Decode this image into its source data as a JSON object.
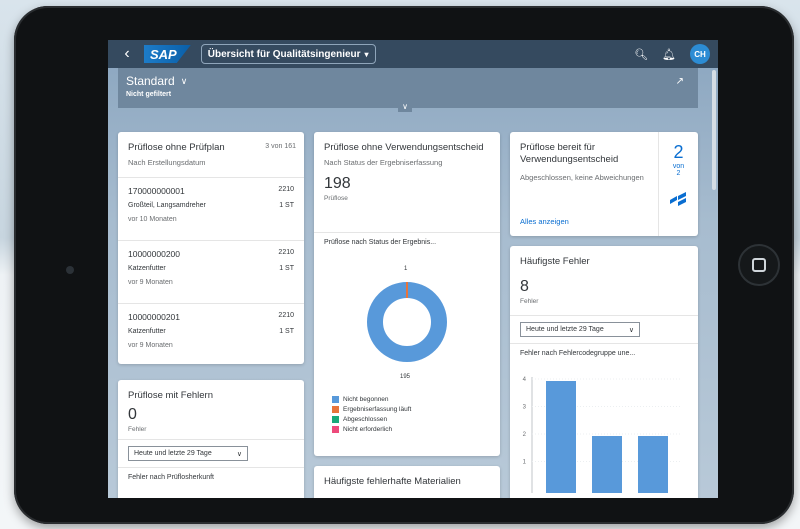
{
  "shell": {
    "logo": "SAP",
    "app_title": "Übersicht für Qualitätsingenieur",
    "user_initials": "CH"
  },
  "filter": {
    "variant": "Standard",
    "status": "Nicht gefiltert"
  },
  "card_plan": {
    "title": "Prüflose ohne Prüfplan",
    "counter": "3 von 161",
    "subtitle": "Nach Erstellungsdatum",
    "items": [
      {
        "id": "170000000001",
        "code": "2210",
        "material": "Großteil, Langsamdreher",
        "qty": "1 ST",
        "date": "vor 10 Monaten"
      },
      {
        "id": "10000000200",
        "code": "2210",
        "material": "Katzenfutter",
        "qty": "1 ST",
        "date": "vor 9 Monaten"
      },
      {
        "id": "10000000201",
        "code": "2210",
        "material": "Katzenfutter",
        "qty": "1 ST",
        "date": "vor 9 Monaten"
      }
    ]
  },
  "card_errors": {
    "title": "Prüflose mit Fehlern",
    "kpi": "0",
    "unit": "Fehler",
    "select": "Heute und letzte 29 Tage",
    "footer": "Fehler nach Prüflosherkunft"
  },
  "card_usage": {
    "title": "Prüflose ohne Verwendungsentscheid",
    "subtitle": "Nach Status der Ergebniserfassung",
    "kpi": "198",
    "unit": "Prüflose",
    "chart_title": "Prüflose nach Status der Ergebnis...",
    "label_top": "1",
    "label_bottom": "195",
    "legend": [
      {
        "label": "Nicht begonnen",
        "color": "#5899da"
      },
      {
        "label": "Ergebniserfassung läuft",
        "color": "#e8743b"
      },
      {
        "label": "Abgeschlossen",
        "color": "#19a979"
      },
      {
        "label": "Nicht erforderlich",
        "color": "#ed4a7b"
      }
    ]
  },
  "card_frequent_materials": {
    "title": "Häufigste fehlerhafte Materialien"
  },
  "card_ready": {
    "title": "Prüflose bereit für Verwendungsentscheid",
    "subtitle": "Abgeschlossen, keine Abweichungen",
    "link": "Alles anzeigen",
    "count": "2",
    "of": "von",
    "total": "2"
  },
  "card_top_errors": {
    "title": "Häufigste Fehler",
    "kpi": "8",
    "unit": "Fehler",
    "select": "Heute und letzte 29 Tage",
    "chart_title": "Fehler nach Fehlercodegruppe une..."
  },
  "chart_data": {
    "type": "bar",
    "title": "Fehler nach Fehlercodegruppe une...",
    "categories": [
      "",
      "",
      ""
    ],
    "values": [
      4,
      2,
      2
    ],
    "ylim": [
      0,
      4
    ],
    "y_ticks": [
      "4",
      "3",
      "2",
      "1"
    ],
    "color": "#5899da"
  }
}
